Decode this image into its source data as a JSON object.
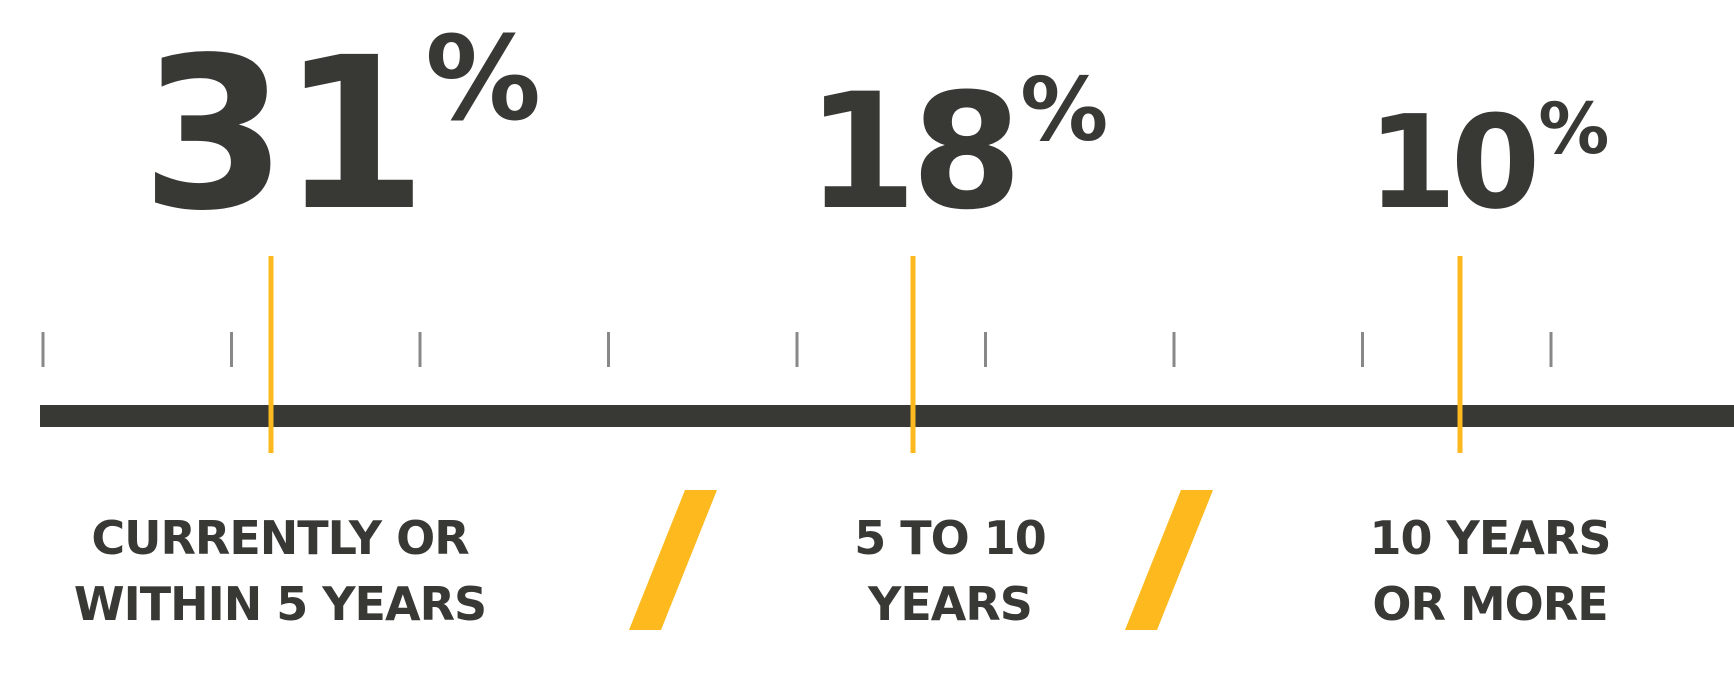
{
  "colors": {
    "dark": "#383835",
    "accent": "#FDB91D",
    "tick": "#888888"
  },
  "chart_data": {
    "type": "bar",
    "categories": [
      "CURRENTLY OR WITHIN 5 YEARS",
      "5 TO 10 YEARS",
      "10 YEARS OR MORE"
    ],
    "category_lines": [
      [
        "CURRENTLY OR",
        "WITHIN 5 YEARS"
      ],
      [
        "5 TO 10",
        "YEARS"
      ],
      [
        "10 YEARS",
        "OR MORE"
      ]
    ],
    "values": [
      31,
      18,
      10
    ],
    "value_labels": [
      "31",
      "18",
      "10"
    ],
    "unit": "%",
    "separator": "/",
    "ylim": [
      0,
      100
    ]
  }
}
